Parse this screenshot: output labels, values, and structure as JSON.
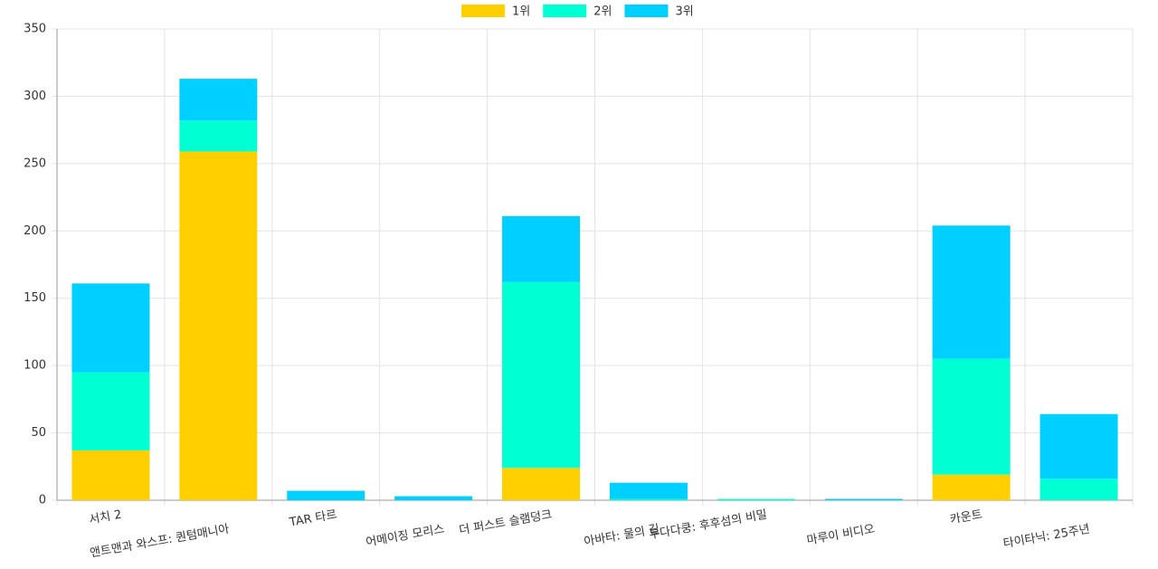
{
  "chart_data": {
    "type": "stacked_bar",
    "categories": [
      "서치 2",
      "앤트맨과 와스프: 퀀텀매니아",
      "TAR 타르",
      "어메이징 모리스",
      "더 퍼스트 슬램덩크",
      "아바타: 물의 길",
      "두다다쿵: 후후섬의 비밀",
      "마루이 비디오",
      "카운트",
      "타이타닉: 25주년"
    ],
    "series": [
      {
        "name": "1위",
        "color": "#ffcf00",
        "values": [
          37,
          259,
          0,
          0,
          24,
          0,
          0,
          0,
          19,
          0
        ]
      },
      {
        "name": "2위",
        "color": "#00ffd2",
        "values": [
          58,
          23,
          0,
          0,
          138,
          1,
          1,
          0,
          86,
          16
        ]
      },
      {
        "name": "3위",
        "color": "#00d0ff",
        "values": [
          66,
          31,
          7,
          3,
          49,
          12,
          0,
          1,
          99,
          48
        ]
      }
    ],
    "ylim": [
      0,
      350
    ],
    "yticks": [
      0,
      50,
      100,
      150,
      200,
      250,
      300,
      350
    ],
    "grid": true,
    "legend": "top"
  }
}
